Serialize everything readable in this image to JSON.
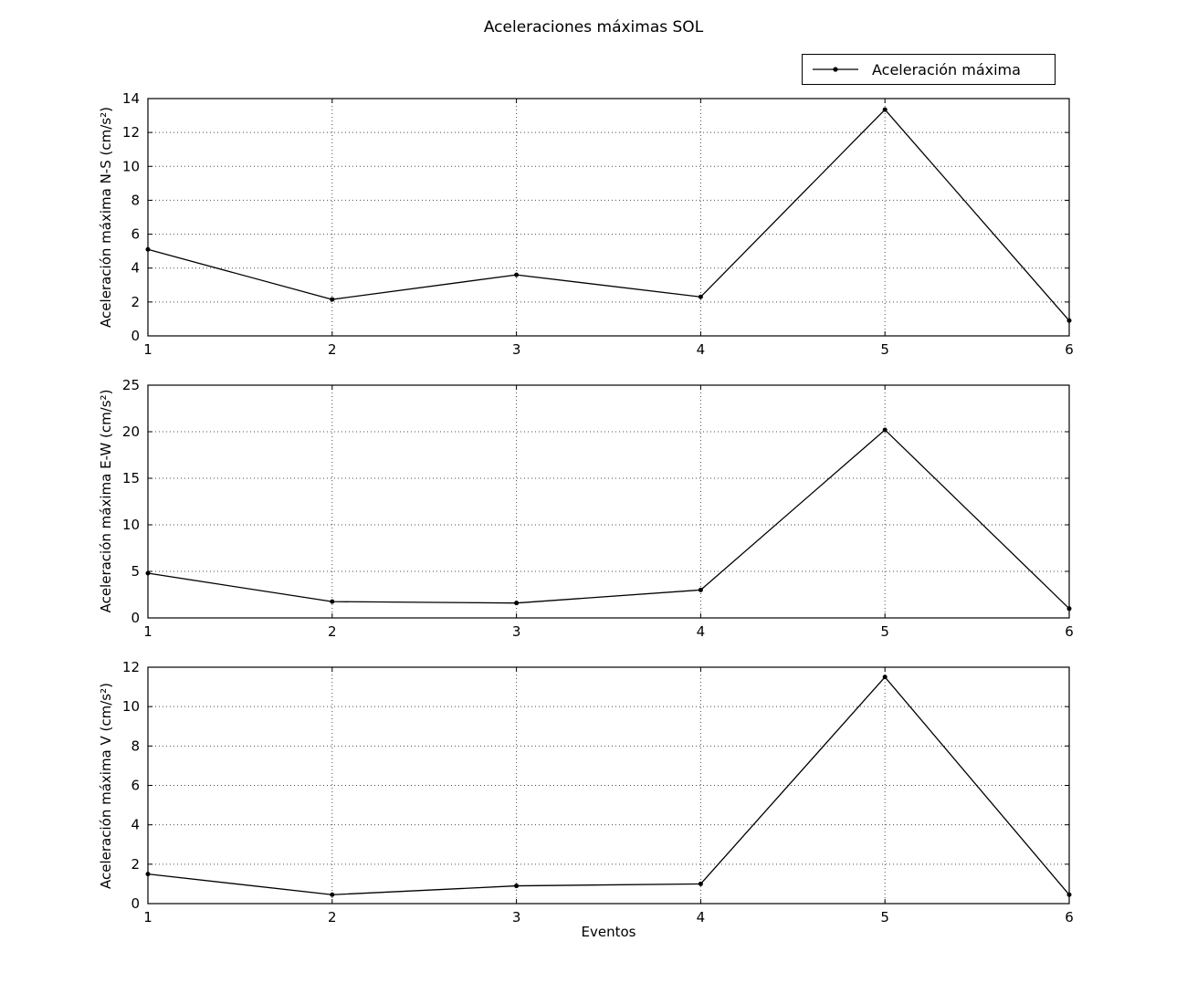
{
  "figure": {
    "title": "Aceleraciones máximas SOL",
    "xlabel": "Eventos",
    "legend_label": "Aceleración máxima",
    "colors": {
      "line": "#000000",
      "grid": "#000000",
      "background": "#ffffff"
    }
  },
  "chart_data": [
    {
      "type": "line",
      "name": "N-S",
      "title": "",
      "xlabel": "",
      "ylabel": "Aceleración máxima N-S (cm/s²)",
      "x": [
        1,
        2,
        3,
        4,
        5,
        6
      ],
      "series": [
        {
          "name": "Aceleración máxima",
          "values": [
            5.1,
            2.15,
            3.6,
            2.3,
            13.35,
            0.9
          ]
        }
      ],
      "xlim": [
        1,
        6
      ],
      "ylim": [
        0,
        14
      ],
      "xticks": [
        1,
        2,
        3,
        4,
        5,
        6
      ],
      "yticks": [
        0,
        2,
        4,
        6,
        8,
        10,
        12,
        14
      ],
      "grid": true,
      "legend_position": "figure-top-right"
    },
    {
      "type": "line",
      "name": "E-W",
      "title": "",
      "xlabel": "",
      "ylabel": "Aceleración máxima E-W (cm/s²)",
      "x": [
        1,
        2,
        3,
        4,
        5,
        6
      ],
      "series": [
        {
          "name": "Aceleración máxima",
          "values": [
            4.8,
            1.75,
            1.6,
            3.0,
            20.2,
            1.0
          ]
        }
      ],
      "xlim": [
        1,
        6
      ],
      "ylim": [
        0,
        25
      ],
      "xticks": [
        1,
        2,
        3,
        4,
        5,
        6
      ],
      "yticks": [
        0,
        5,
        10,
        15,
        20,
        25
      ],
      "grid": true
    },
    {
      "type": "line",
      "name": "V",
      "title": "",
      "xlabel": "Eventos",
      "ylabel": "Aceleración máxima V (cm/s²)",
      "x": [
        1,
        2,
        3,
        4,
        5,
        6
      ],
      "series": [
        {
          "name": "Aceleración máxima",
          "values": [
            1.5,
            0.45,
            0.9,
            1.0,
            11.5,
            0.45
          ]
        }
      ],
      "xlim": [
        1,
        6
      ],
      "ylim": [
        0,
        12
      ],
      "xticks": [
        1,
        2,
        3,
        4,
        5,
        6
      ],
      "yticks": [
        0,
        2,
        4,
        6,
        8,
        10,
        12
      ],
      "grid": true
    }
  ]
}
